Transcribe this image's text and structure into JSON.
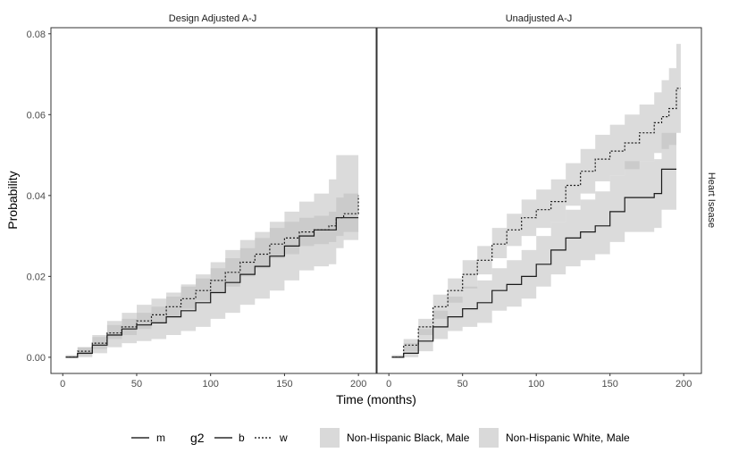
{
  "chart_data": {
    "type": "line",
    "ylabel": "Probability",
    "xlabel": "Time (months)",
    "panels": [
      "Design Adjusted A-J",
      "Unadjusted A-J"
    ],
    "row_strip": "Heart Isease",
    "xlim": [
      -8,
      212
    ],
    "ylim": [
      -0.004,
      0.0815
    ],
    "x_ticks": [
      0,
      50,
      100,
      150,
      200
    ],
    "y_ticks": [
      0.0,
      0.02,
      0.04,
      0.06,
      0.08
    ],
    "x_tick_labels": [
      "0",
      "50",
      "100",
      "150",
      "200"
    ],
    "y_tick_labels": [
      "0.00",
      "0.02",
      "0.04",
      "0.06",
      "0.08"
    ],
    "grid": false,
    "legend_position": "bottom",
    "legend": {
      "m_label": "m",
      "g2_title": "g2",
      "b_label": "b",
      "w_label": "w",
      "band_black": "Non-Hispanic Black, Male",
      "band_white": "Non-Hispanic White, Male"
    },
    "series": [
      {
        "name": "b",
        "panel": 0,
        "linetype": "solid",
        "x": [
          2,
          10,
          20,
          30,
          40,
          50,
          60,
          70,
          80,
          90,
          100,
          110,
          120,
          130,
          140,
          150,
          160,
          170,
          180,
          185,
          190,
          200
        ],
        "y": [
          0.0,
          0.001,
          0.003,
          0.0055,
          0.007,
          0.008,
          0.0085,
          0.01,
          0.0115,
          0.0135,
          0.016,
          0.0185,
          0.0205,
          0.0225,
          0.025,
          0.0275,
          0.03,
          0.0315,
          0.0315,
          0.0345,
          0.0345,
          0.0345
        ],
        "upper": [
          0.0005,
          0.0025,
          0.0055,
          0.009,
          0.011,
          0.013,
          0.0145,
          0.016,
          0.018,
          0.0205,
          0.0235,
          0.0265,
          0.029,
          0.031,
          0.0335,
          0.036,
          0.0385,
          0.0405,
          0.044,
          0.05,
          0.05,
          0.05
        ],
        "lower": [
          0.0,
          0.0,
          0.001,
          0.0025,
          0.0035,
          0.004,
          0.0045,
          0.0055,
          0.0065,
          0.0075,
          0.0095,
          0.011,
          0.013,
          0.0145,
          0.0165,
          0.019,
          0.0215,
          0.0225,
          0.023,
          0.027,
          0.029,
          0.029
        ]
      },
      {
        "name": "w",
        "panel": 0,
        "linetype": "dotted",
        "x": [
          2,
          10,
          20,
          30,
          40,
          50,
          60,
          70,
          80,
          90,
          100,
          110,
          120,
          130,
          140,
          150,
          160,
          170,
          180,
          185,
          190,
          200
        ],
        "y": [
          0.0,
          0.0015,
          0.0035,
          0.006,
          0.0075,
          0.009,
          0.0105,
          0.0125,
          0.0145,
          0.0165,
          0.019,
          0.021,
          0.0235,
          0.0255,
          0.028,
          0.0295,
          0.031,
          0.0315,
          0.0325,
          0.0345,
          0.0355,
          0.04
        ],
        "upper": [
          0.0005,
          0.0025,
          0.005,
          0.008,
          0.0095,
          0.011,
          0.0125,
          0.015,
          0.0175,
          0.0195,
          0.022,
          0.0245,
          0.027,
          0.0295,
          0.032,
          0.0335,
          0.0345,
          0.035,
          0.036,
          0.0395,
          0.0405,
          0.0455
        ],
        "lower": [
          0.0,
          0.0005,
          0.002,
          0.0045,
          0.0055,
          0.007,
          0.0085,
          0.01,
          0.012,
          0.014,
          0.016,
          0.0175,
          0.02,
          0.022,
          0.0245,
          0.0255,
          0.0275,
          0.028,
          0.0285,
          0.03,
          0.031,
          0.0345
        ]
      },
      {
        "name": "b",
        "panel": 1,
        "linetype": "solid",
        "x": [
          2,
          10,
          20,
          30,
          40,
          50,
          60,
          70,
          80,
          90,
          100,
          110,
          120,
          130,
          140,
          150,
          160,
          170,
          180,
          185,
          190,
          195
        ],
        "y": [
          0.0,
          0.001,
          0.004,
          0.0075,
          0.01,
          0.012,
          0.0135,
          0.0165,
          0.018,
          0.02,
          0.023,
          0.0265,
          0.0295,
          0.031,
          0.0325,
          0.036,
          0.0395,
          0.0395,
          0.0405,
          0.0465,
          0.0465,
          0.0465
        ],
        "upper": [
          0.0005,
          0.0035,
          0.007,
          0.0115,
          0.015,
          0.0175,
          0.019,
          0.022,
          0.024,
          0.0265,
          0.03,
          0.0335,
          0.0365,
          0.039,
          0.041,
          0.045,
          0.0485,
          0.0485,
          0.049,
          0.0555,
          0.0555,
          0.0555
        ],
        "lower": [
          0.0,
          0.0,
          0.0015,
          0.0045,
          0.0065,
          0.0075,
          0.0085,
          0.0115,
          0.0125,
          0.0145,
          0.0175,
          0.0205,
          0.0225,
          0.024,
          0.0255,
          0.0285,
          0.031,
          0.031,
          0.032,
          0.0365,
          0.0365,
          0.0365
        ]
      },
      {
        "name": "w",
        "panel": 1,
        "linetype": "dotted",
        "x": [
          2,
          10,
          20,
          30,
          40,
          50,
          60,
          70,
          80,
          90,
          100,
          110,
          120,
          130,
          140,
          150,
          160,
          170,
          180,
          185,
          190,
          195,
          198
        ],
        "y": [
          0.0,
          0.003,
          0.0075,
          0.0125,
          0.0165,
          0.0205,
          0.024,
          0.028,
          0.0315,
          0.0345,
          0.0365,
          0.0385,
          0.0425,
          0.046,
          0.049,
          0.051,
          0.053,
          0.0555,
          0.058,
          0.0595,
          0.0615,
          0.0665,
          0.0665
        ],
        "upper": [
          0.0005,
          0.0045,
          0.0095,
          0.0155,
          0.0195,
          0.024,
          0.0275,
          0.032,
          0.0355,
          0.039,
          0.0415,
          0.044,
          0.048,
          0.0515,
          0.055,
          0.0575,
          0.06,
          0.0625,
          0.0655,
          0.0685,
          0.0715,
          0.0775,
          0.0775
        ],
        "lower": [
          0.0,
          0.0015,
          0.0055,
          0.0095,
          0.0135,
          0.017,
          0.0205,
          0.0245,
          0.0275,
          0.03,
          0.032,
          0.0335,
          0.0375,
          0.0405,
          0.0435,
          0.045,
          0.0465,
          0.0485,
          0.0505,
          0.0515,
          0.0525,
          0.0555,
          0.0555
        ]
      }
    ]
  }
}
